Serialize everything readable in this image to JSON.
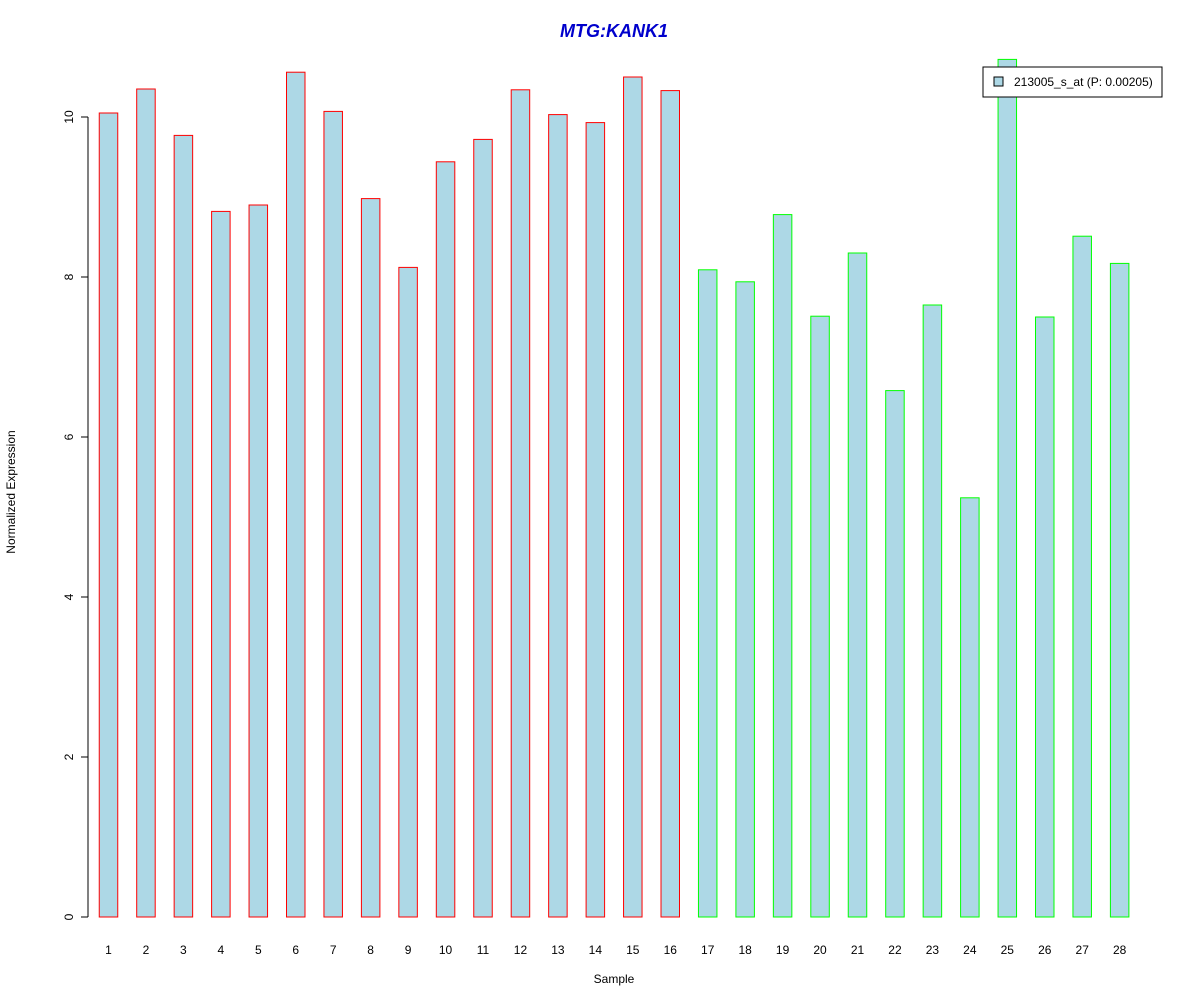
{
  "chart_data": {
    "type": "bar",
    "title": "MTG:KANK1",
    "xlabel": "Sample",
    "ylabel": "Normalized Expression",
    "ylim": [
      0,
      10.7
    ],
    "yticks": [
      0,
      2,
      4,
      6,
      8,
      10
    ],
    "categories": [
      "1",
      "2",
      "3",
      "4",
      "5",
      "6",
      "7",
      "8",
      "9",
      "10",
      "11",
      "12",
      "13",
      "14",
      "15",
      "16",
      "17",
      "18",
      "19",
      "20",
      "21",
      "22",
      "23",
      "24",
      "25",
      "26",
      "27",
      "28"
    ],
    "series": [
      {
        "name": "213005_s_at (P: 0.00205)",
        "values": [
          10.05,
          10.35,
          9.77,
          8.82,
          8.9,
          10.56,
          10.07,
          8.98,
          8.12,
          9.44,
          9.72,
          10.34,
          10.03,
          9.93,
          10.5,
          10.33,
          8.09,
          7.94,
          8.78,
          7.51,
          8.3,
          6.58,
          7.65,
          5.24,
          10.72,
          7.5,
          8.51,
          8.17
        ]
      }
    ],
    "bar_fill": "#add8e6",
    "group_colors": {
      "group_1": "#ff0000",
      "group_2": "#00ff00"
    },
    "group_of_sample": [
      1,
      1,
      1,
      1,
      1,
      1,
      1,
      1,
      1,
      1,
      1,
      1,
      1,
      1,
      1,
      1,
      2,
      2,
      2,
      2,
      2,
      2,
      2,
      2,
      2,
      2,
      2,
      2
    ],
    "title_color": "#0000cc",
    "legend": {
      "placement": "top-right",
      "label": "213005_s_at (P: 0.00205)"
    },
    "grid": false
  }
}
